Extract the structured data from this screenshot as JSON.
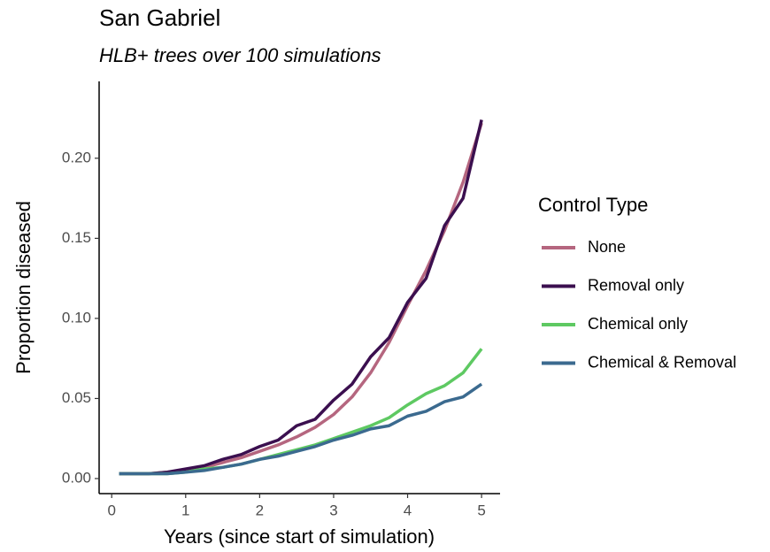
{
  "chart_data": {
    "type": "line",
    "title": "San Gabriel",
    "subtitle": "HLB+ trees over 100 simulations",
    "x_label": "Years (since start of simulation)",
    "y_label": "Proportion diseased",
    "legend_title": "Control Type",
    "legend": "right",
    "x": [
      0.1,
      0.5,
      0.75,
      1,
      1.25,
      1.5,
      1.75,
      2,
      2.25,
      2.5,
      2.75,
      3,
      3.25,
      3.5,
      3.75,
      4,
      4.25,
      4.5,
      4.75,
      5
    ],
    "series": [
      {
        "name": "None",
        "color": "#b5667f",
        "values": [
          0.003,
          0.003,
          0.004,
          0.005,
          0.007,
          0.01,
          0.013,
          0.017,
          0.021,
          0.026,
          0.032,
          0.04,
          0.051,
          0.066,
          0.085,
          0.108,
          0.13,
          0.155,
          0.185,
          0.222
        ]
      },
      {
        "name": "Removal only",
        "color": "#3b0f4f",
        "values": [
          0.003,
          0.003,
          0.004,
          0.006,
          0.008,
          0.012,
          0.015,
          0.02,
          0.024,
          0.033,
          0.037,
          0.049,
          0.059,
          0.076,
          0.088,
          0.11,
          0.125,
          0.158,
          0.175,
          0.224
        ]
      },
      {
        "name": "Chemical only",
        "color": "#5ec962",
        "values": [
          0.003,
          0.003,
          0.003,
          0.004,
          0.006,
          0.007,
          0.009,
          0.012,
          0.015,
          0.018,
          0.021,
          0.025,
          0.029,
          0.033,
          0.038,
          0.046,
          0.053,
          0.058,
          0.066,
          0.081
        ]
      },
      {
        "name": "Chemical & Removal",
        "color": "#3b6a8f",
        "values": [
          0.003,
          0.003,
          0.003,
          0.004,
          0.005,
          0.007,
          0.009,
          0.012,
          0.014,
          0.017,
          0.02,
          0.024,
          0.027,
          0.031,
          0.033,
          0.039,
          0.042,
          0.048,
          0.051,
          0.059
        ]
      }
    ],
    "xlim": [
      -0.17,
      5.25
    ],
    "xticks": [
      0,
      1,
      2,
      3,
      4,
      5
    ],
    "ylim": [
      -0.0094,
      0.248
    ],
    "yticks": [
      {
        "value": 0,
        "label": "0.00"
      },
      {
        "value": 0.05,
        "label": "0.05"
      },
      {
        "value": 0.1,
        "label": "0.10"
      },
      {
        "value": 0.15,
        "label": "0.15"
      },
      {
        "value": 0.2,
        "label": "0.20"
      }
    ],
    "grid": false
  }
}
